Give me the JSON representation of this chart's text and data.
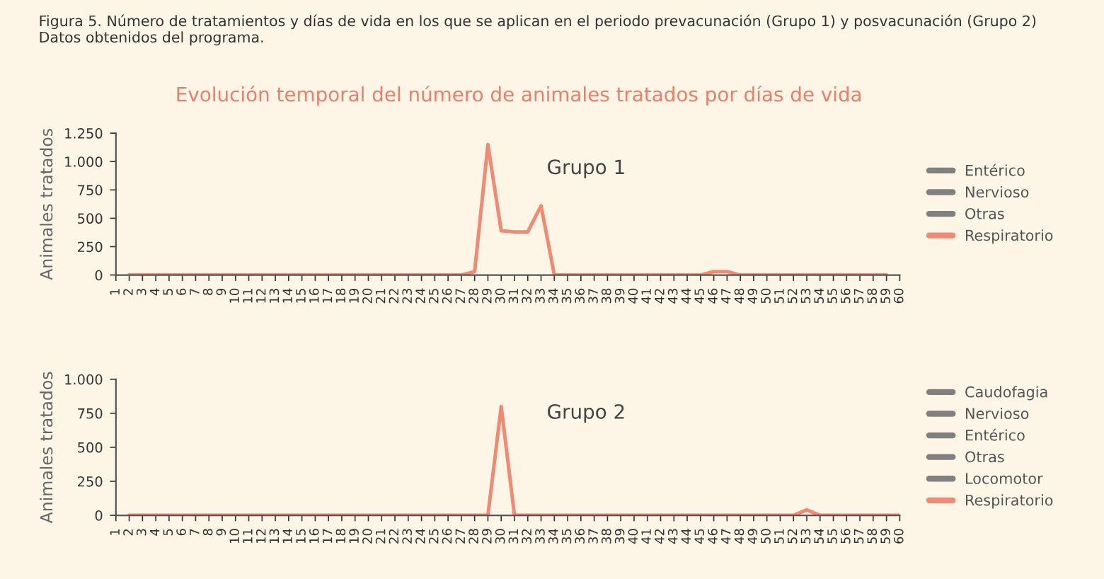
{
  "chart_data": [
    {
      "type": "line",
      "title": "Figura 5. Número de tratamientos y días de vida en los que se aplican en el periodo prevacunación (Grupo 1) y posvacunación (Grupo 2)\nDatos obtenidos del programa.",
      "subtitle": "Evolución temporal del número de animales tratados por días de vida",
      "ylabel": "Animales tratados",
      "annotations": [
        "Grupo 1"
      ],
      "xlim": [
        1,
        60
      ],
      "xticks": [
        1,
        2,
        3,
        4,
        5,
        6,
        7,
        8,
        9,
        10,
        11,
        12,
        13,
        14,
        15,
        16,
        17,
        18,
        19,
        20,
        21,
        22,
        23,
        24,
        25,
        26,
        27,
        28,
        29,
        30,
        31,
        32,
        33,
        34,
        35,
        36,
        37,
        38,
        39,
        40,
        41,
        42,
        43,
        44,
        45,
        46,
        47,
        48,
        49,
        50,
        51,
        52,
        53,
        54,
        55,
        56,
        57,
        58,
        59,
        60
      ],
      "ylim": [
        0,
        1250
      ],
      "yticks": [
        {
          "value": 0,
          "label": "0"
        },
        {
          "value": 250,
          "label": "250"
        },
        {
          "value": 500,
          "label": "500"
        },
        {
          "value": 750,
          "label": "750"
        },
        {
          "value": 1000,
          "label": "1.000"
        },
        {
          "value": 1250,
          "label": "1.250"
        }
      ],
      "grid": false,
      "legend": "right",
      "marker": "none",
      "line_style": "solid",
      "series": [
        {
          "name": "Entérico",
          "color": "#808080"
        },
        {
          "name": "Nervioso",
          "color": "#808080"
        },
        {
          "name": "Otras",
          "color": "#808080"
        },
        {
          "name": "Respiratorio",
          "color": "#f08a72",
          "x": [
            2,
            3,
            4,
            5,
            6,
            7,
            8,
            9,
            10,
            11,
            12,
            13,
            14,
            15,
            16,
            17,
            18,
            19,
            20,
            21,
            22,
            23,
            24,
            25,
            26,
            27,
            28,
            29,
            30,
            31,
            32,
            33,
            34,
            35,
            36,
            37,
            38,
            39,
            40,
            41,
            42,
            43,
            44,
            45,
            46,
            47,
            48,
            49,
            50,
            51,
            52,
            53,
            54,
            55,
            56,
            57,
            58,
            59
          ],
          "values": [
            0,
            0,
            0,
            0,
            0,
            0,
            0,
            0,
            0,
            0,
            0,
            0,
            0,
            0,
            0,
            0,
            0,
            0,
            0,
            0,
            0,
            0,
            0,
            0,
            0,
            0,
            30,
            1150,
            390,
            380,
            380,
            610,
            0,
            0,
            0,
            0,
            0,
            0,
            0,
            0,
            0,
            0,
            0,
            0,
            30,
            30,
            0,
            0,
            0,
            0,
            0,
            0,
            0,
            0,
            0,
            0,
            0,
            0
          ]
        }
      ]
    },
    {
      "type": "line",
      "ylabel": "Animales tratados",
      "annotations": [
        "Grupo 2"
      ],
      "xlim": [
        1,
        60
      ],
      "xticks": [
        1,
        2,
        3,
        4,
        5,
        6,
        7,
        8,
        9,
        10,
        11,
        12,
        13,
        14,
        15,
        16,
        17,
        18,
        19,
        20,
        21,
        22,
        23,
        24,
        25,
        26,
        27,
        28,
        29,
        30,
        31,
        32,
        33,
        34,
        35,
        36,
        37,
        38,
        39,
        40,
        41,
        42,
        43,
        44,
        45,
        46,
        47,
        48,
        49,
        50,
        51,
        52,
        53,
        54,
        55,
        56,
        57,
        58,
        59,
        60
      ],
      "ylim": [
        0,
        1000
      ],
      "yticks": [
        {
          "value": 0,
          "label": "0"
        },
        {
          "value": 250,
          "label": "250"
        },
        {
          "value": 500,
          "label": "500"
        },
        {
          "value": 750,
          "label": "750"
        },
        {
          "value": 1000,
          "label": "1.000"
        }
      ],
      "grid": false,
      "legend": "right",
      "marker": "none",
      "line_style": "solid",
      "series": [
        {
          "name": "Caudofagia",
          "color": "#808080"
        },
        {
          "name": "Nervioso",
          "color": "#808080"
        },
        {
          "name": "Entérico",
          "color": "#808080"
        },
        {
          "name": "Otras",
          "color": "#808080"
        },
        {
          "name": "Locomotor",
          "color": "#808080"
        },
        {
          "name": "Respiratorio",
          "color": "#f08a72",
          "x": [
            2,
            3,
            4,
            5,
            6,
            7,
            8,
            9,
            10,
            11,
            12,
            13,
            14,
            15,
            16,
            17,
            18,
            19,
            20,
            21,
            22,
            23,
            24,
            25,
            26,
            27,
            28,
            29,
            30,
            31,
            32,
            33,
            34,
            35,
            36,
            37,
            38,
            39,
            40,
            41,
            42,
            43,
            44,
            45,
            46,
            47,
            48,
            49,
            50,
            51,
            52,
            53,
            54,
            55,
            56,
            57,
            58,
            59,
            60
          ],
          "values": [
            0,
            0,
            0,
            0,
            0,
            0,
            0,
            0,
            0,
            0,
            0,
            0,
            0,
            0,
            0,
            0,
            0,
            0,
            0,
            0,
            0,
            0,
            0,
            0,
            0,
            0,
            0,
            0,
            800,
            0,
            0,
            0,
            0,
            0,
            0,
            0,
            0,
            0,
            0,
            0,
            0,
            0,
            0,
            0,
            0,
            0,
            0,
            0,
            0,
            0,
            0,
            40,
            0,
            0,
            0,
            0,
            0,
            0,
            0
          ]
        }
      ]
    }
  ]
}
